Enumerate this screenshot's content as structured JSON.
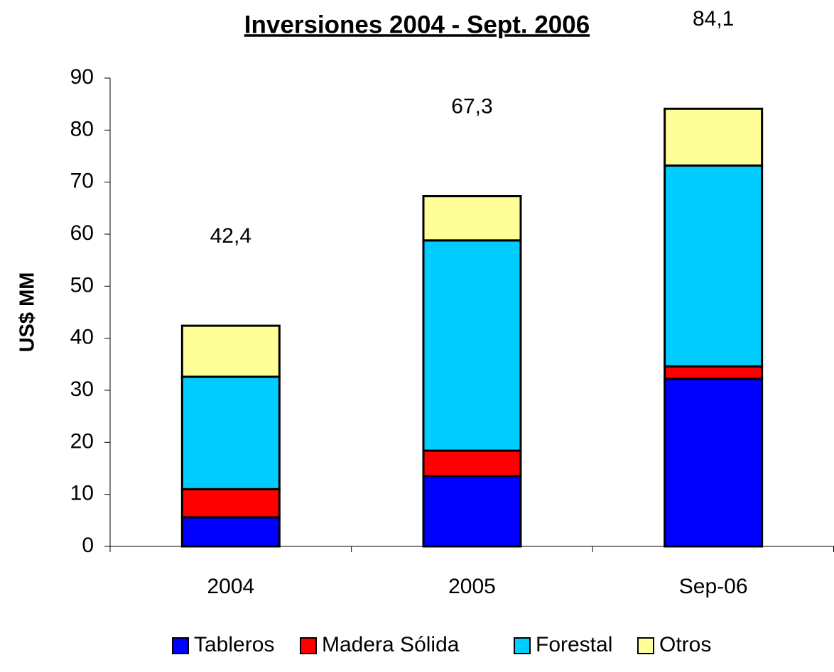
{
  "chart_data": {
    "type": "stacked-bar",
    "title": "Inversiones 2004 - Sept. 2006",
    "y_label": "US$ MM",
    "categories": [
      "2004",
      "2005",
      "Sep-06"
    ],
    "series": [
      {
        "name": "Tableros",
        "color": "#0000ff",
        "values": [
          5.6,
          13.5,
          32.2
        ]
      },
      {
        "name": "Madera Sólida",
        "color": "#ff0000",
        "values": [
          5.4,
          4.9,
          2.4
        ]
      },
      {
        "name": "Forestal",
        "color": "#00ccff",
        "values": [
          21.6,
          40.4,
          38.6
        ]
      },
      {
        "name": "Otros",
        "color": "#ffff99",
        "values": [
          9.8,
          8.5,
          10.9
        ]
      }
    ],
    "totals": [
      42.4,
      67.3,
      84.1
    ],
    "total_labels": [
      "42,4",
      "67,3",
      "84,1"
    ],
    "ylim": [
      0,
      90
    ],
    "yticks": [
      0,
      10,
      20,
      30,
      40,
      50,
      60,
      70,
      80,
      90
    ],
    "grid": false,
    "legend": "bottom"
  }
}
